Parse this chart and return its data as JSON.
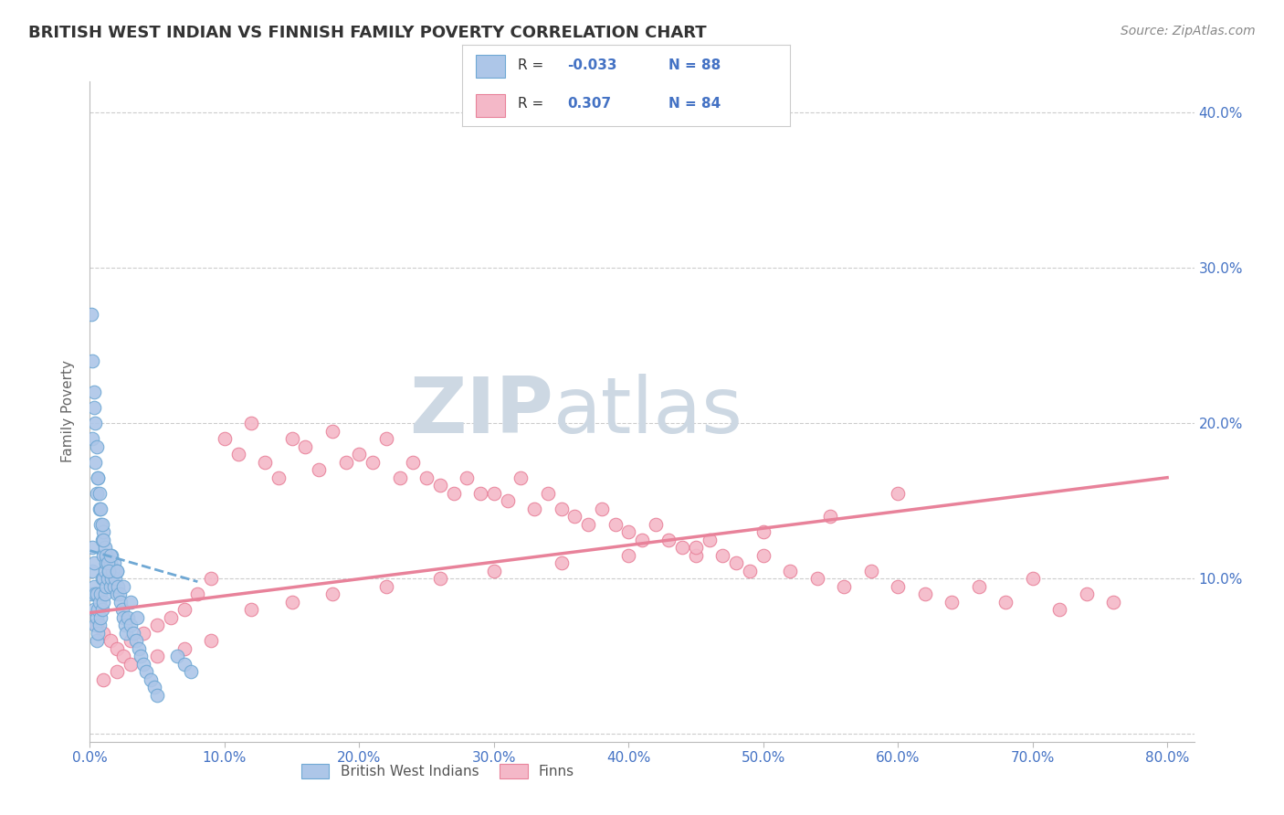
{
  "title": "BRITISH WEST INDIAN VS FINNISH FAMILY POVERTY CORRELATION CHART",
  "source": "Source: ZipAtlas.com",
  "ylabel": "Family Poverty",
  "xlim": [
    0.0,
    0.82
  ],
  "ylim": [
    -0.005,
    0.42
  ],
  "xticks": [
    0.0,
    0.1,
    0.2,
    0.3,
    0.4,
    0.5,
    0.6,
    0.7,
    0.8
  ],
  "xticklabels": [
    "0.0%",
    "10.0%",
    "20.0%",
    "30.0%",
    "40.0%",
    "50.0%",
    "60.0%",
    "70.0%",
    "80.0%"
  ],
  "yticks": [
    0.0,
    0.1,
    0.2,
    0.3,
    0.4
  ],
  "yticklabels_right": [
    "",
    "10.0%",
    "20.0%",
    "30.0%",
    "40.0%"
  ],
  "grid_color": "#cccccc",
  "background_color": "#ffffff",
  "watermark_color": "#cdd8e3",
  "blue_color": "#6fa8d4",
  "blue_fill": "#adc6e8",
  "pink_color": "#e8829a",
  "pink_fill": "#f4b8c8",
  "blue_label": "British West Indians",
  "pink_label": "Finns",
  "title_color": "#333333",
  "axis_color": "#4472c4",
  "blue_scatter_x": [
    0.001,
    0.002,
    0.002,
    0.003,
    0.003,
    0.003,
    0.004,
    0.004,
    0.005,
    0.005,
    0.005,
    0.006,
    0.006,
    0.007,
    0.007,
    0.008,
    0.008,
    0.009,
    0.009,
    0.01,
    0.01,
    0.01,
    0.011,
    0.011,
    0.012,
    0.012,
    0.013,
    0.013,
    0.014,
    0.015,
    0.015,
    0.016,
    0.016,
    0.017,
    0.018,
    0.018,
    0.019,
    0.02,
    0.02,
    0.021,
    0.022,
    0.023,
    0.024,
    0.025,
    0.026,
    0.027,
    0.028,
    0.03,
    0.032,
    0.034,
    0.036,
    0.038,
    0.04,
    0.042,
    0.045,
    0.048,
    0.05,
    0.002,
    0.003,
    0.004,
    0.005,
    0.006,
    0.007,
    0.008,
    0.009,
    0.01,
    0.011,
    0.012,
    0.013,
    0.014,
    0.001,
    0.002,
    0.003,
    0.004,
    0.005,
    0.006,
    0.007,
    0.008,
    0.009,
    0.01,
    0.015,
    0.02,
    0.025,
    0.03,
    0.035,
    0.065,
    0.07,
    0.075
  ],
  "blue_scatter_y": [
    0.09,
    0.105,
    0.12,
    0.08,
    0.095,
    0.11,
    0.07,
    0.09,
    0.06,
    0.075,
    0.09,
    0.065,
    0.08,
    0.07,
    0.085,
    0.075,
    0.09,
    0.08,
    0.1,
    0.085,
    0.1,
    0.115,
    0.09,
    0.105,
    0.095,
    0.11,
    0.1,
    0.115,
    0.105,
    0.095,
    0.11,
    0.1,
    0.115,
    0.105,
    0.095,
    0.11,
    0.1,
    0.09,
    0.105,
    0.095,
    0.09,
    0.085,
    0.08,
    0.075,
    0.07,
    0.065,
    0.075,
    0.07,
    0.065,
    0.06,
    0.055,
    0.05,
    0.045,
    0.04,
    0.035,
    0.03,
    0.025,
    0.19,
    0.21,
    0.175,
    0.155,
    0.165,
    0.145,
    0.135,
    0.125,
    0.13,
    0.12,
    0.115,
    0.11,
    0.105,
    0.27,
    0.24,
    0.22,
    0.2,
    0.185,
    0.165,
    0.155,
    0.145,
    0.135,
    0.125,
    0.115,
    0.105,
    0.095,
    0.085,
    0.075,
    0.05,
    0.045,
    0.04
  ],
  "pink_scatter_x": [
    0.005,
    0.01,
    0.015,
    0.02,
    0.025,
    0.03,
    0.04,
    0.05,
    0.06,
    0.07,
    0.08,
    0.09,
    0.1,
    0.11,
    0.12,
    0.13,
    0.14,
    0.15,
    0.16,
    0.17,
    0.18,
    0.19,
    0.2,
    0.21,
    0.22,
    0.23,
    0.24,
    0.25,
    0.26,
    0.27,
    0.28,
    0.29,
    0.3,
    0.31,
    0.32,
    0.33,
    0.34,
    0.35,
    0.36,
    0.37,
    0.38,
    0.39,
    0.4,
    0.41,
    0.42,
    0.43,
    0.44,
    0.45,
    0.46,
    0.47,
    0.48,
    0.49,
    0.5,
    0.52,
    0.54,
    0.56,
    0.58,
    0.6,
    0.62,
    0.64,
    0.66,
    0.68,
    0.7,
    0.72,
    0.74,
    0.76,
    0.01,
    0.02,
    0.03,
    0.05,
    0.07,
    0.09,
    0.12,
    0.15,
    0.18,
    0.22,
    0.26,
    0.3,
    0.35,
    0.4,
    0.45,
    0.5,
    0.55,
    0.6
  ],
  "pink_scatter_y": [
    0.07,
    0.065,
    0.06,
    0.055,
    0.05,
    0.06,
    0.065,
    0.07,
    0.075,
    0.08,
    0.09,
    0.1,
    0.19,
    0.18,
    0.2,
    0.175,
    0.165,
    0.19,
    0.185,
    0.17,
    0.195,
    0.175,
    0.18,
    0.175,
    0.19,
    0.165,
    0.175,
    0.165,
    0.16,
    0.155,
    0.165,
    0.155,
    0.155,
    0.15,
    0.165,
    0.145,
    0.155,
    0.145,
    0.14,
    0.135,
    0.145,
    0.135,
    0.13,
    0.125,
    0.135,
    0.125,
    0.12,
    0.115,
    0.125,
    0.115,
    0.11,
    0.105,
    0.115,
    0.105,
    0.1,
    0.095,
    0.105,
    0.095,
    0.09,
    0.085,
    0.095,
    0.085,
    0.1,
    0.08,
    0.09,
    0.085,
    0.035,
    0.04,
    0.045,
    0.05,
    0.055,
    0.06,
    0.08,
    0.085,
    0.09,
    0.095,
    0.1,
    0.105,
    0.11,
    0.115,
    0.12,
    0.13,
    0.14,
    0.155
  ],
  "blue_trend_x": [
    0.0,
    0.08
  ],
  "blue_trend_y": [
    0.118,
    0.098
  ],
  "pink_trend_x": [
    0.0,
    0.8
  ],
  "pink_trend_y": [
    0.078,
    0.165
  ]
}
